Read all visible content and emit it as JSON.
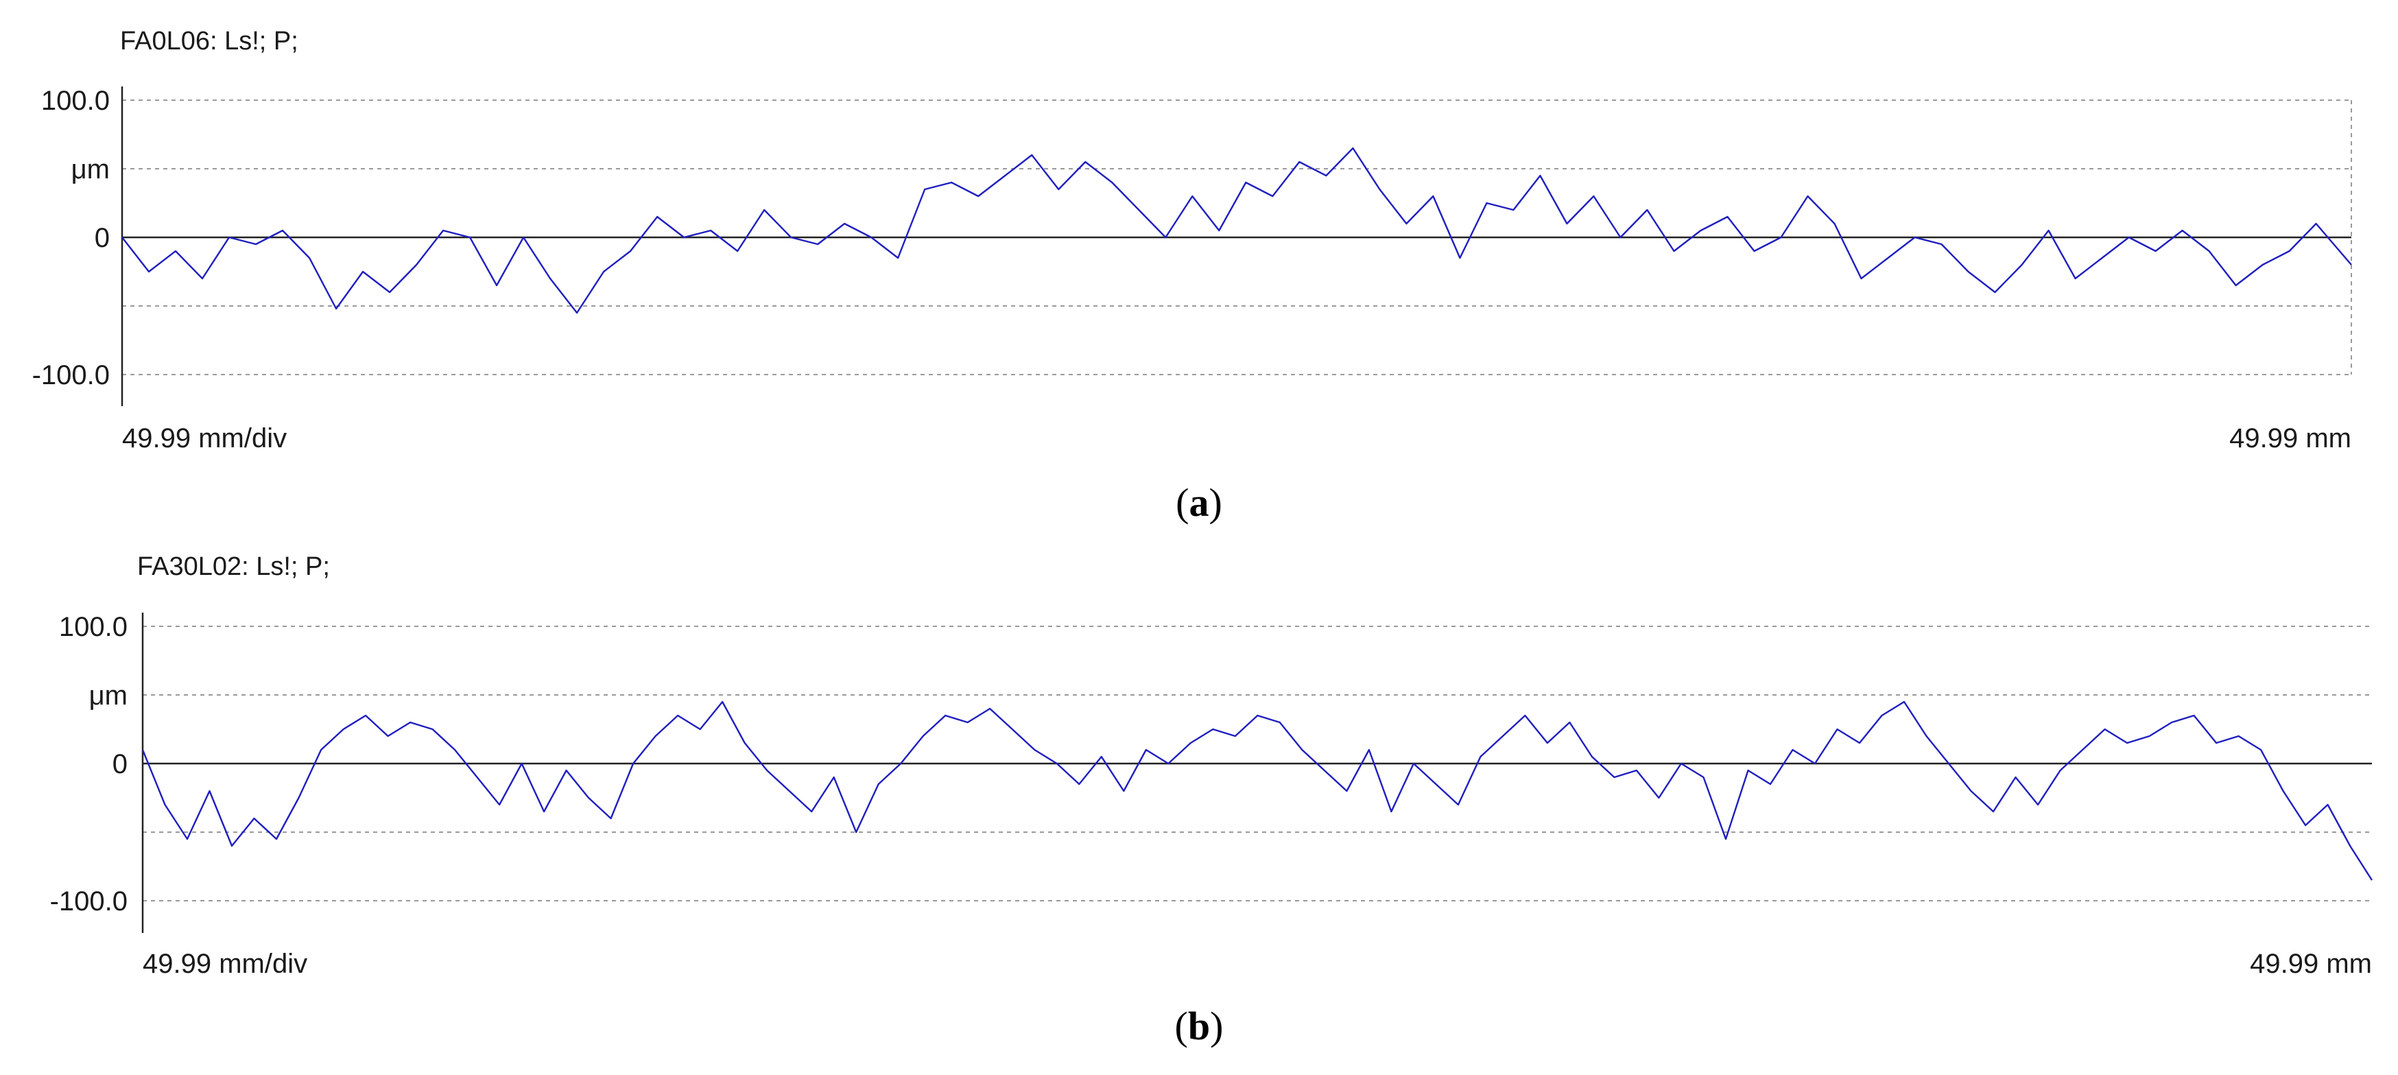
{
  "figure": {
    "captions": [
      "(a)",
      "(b)"
    ]
  },
  "chart_data": [
    {
      "type": "line",
      "title": "FA0L06: Ls!; P;",
      "y_ticks": [
        "100.0",
        "μm",
        "0",
        "-100.0"
      ],
      "y_tick_values": [
        100,
        50,
        0,
        -100
      ],
      "ylim": [
        -100,
        100
      ],
      "xlim": [
        0,
        49.99
      ],
      "x_left_label": "49.99 mm/div",
      "x_right_label": "49.99 mm",
      "grid": "horizontal dashed",
      "line_color": "#1f1fbf",
      "series": [
        {
          "x": [
            0.0,
            0.6,
            1.2,
            1.8,
            2.4,
            3.0,
            3.6,
            4.2,
            4.8,
            5.4,
            6.0,
            6.6,
            7.2,
            7.8,
            8.4,
            9.0,
            9.6,
            10.2,
            10.8,
            11.4,
            12.0,
            12.6,
            13.2,
            13.8,
            14.4,
            15.0,
            15.6,
            16.2,
            16.8,
            17.4,
            18.0,
            18.6,
            19.2,
            19.8,
            20.4,
            21.0,
            21.6,
            22.2,
            22.8,
            23.4,
            24.0,
            24.6,
            25.2,
            25.8,
            26.4,
            27.0,
            27.6,
            28.2,
            28.8,
            29.4,
            30.0,
            30.6,
            31.2,
            31.8,
            32.4,
            33.0,
            33.6,
            34.2,
            34.8,
            35.4,
            36.0,
            36.6,
            37.2,
            37.8,
            38.4,
            39.0,
            39.6,
            40.2,
            40.8,
            41.4,
            42.0,
            42.6,
            43.2,
            43.8,
            44.4,
            45.0,
            45.6,
            46.2,
            46.8,
            47.4,
            48.0,
            48.6,
            49.2,
            49.99
          ],
          "y": [
            0,
            -25,
            -10,
            -30,
            0,
            -5,
            5,
            -15,
            -52,
            -25,
            -40,
            -20,
            5,
            0,
            -35,
            0,
            -30,
            -55,
            -25,
            -10,
            15,
            0,
            5,
            -10,
            20,
            0,
            -5,
            10,
            0,
            -15,
            35,
            40,
            30,
            45,
            60,
            35,
            55,
            40,
            20,
            0,
            30,
            5,
            40,
            30,
            55,
            45,
            65,
            35,
            10,
            30,
            -15,
            25,
            20,
            45,
            10,
            30,
            0,
            20,
            -10,
            5,
            15,
            -10,
            0,
            30,
            10,
            -30,
            -15,
            0,
            -5,
            -25,
            -40,
            -20,
            5,
            -30,
            -15,
            0,
            -10,
            5,
            -10,
            -35,
            -20,
            -10,
            10,
            -20
          ]
        }
      ]
    },
    {
      "type": "line",
      "title": "FA30L02: Ls!; P;",
      "y_ticks": [
        "100.0",
        "μm",
        "0",
        "-100.0"
      ],
      "y_tick_values": [
        100,
        50,
        0,
        -100
      ],
      "ylim": [
        -100,
        100
      ],
      "xlim": [
        0,
        49.99
      ],
      "x_left_label": "49.99 mm/div",
      "x_right_label": "49.99 mm",
      "grid": "horizontal dashed",
      "line_color": "#1f1fbf",
      "series": [
        {
          "x": [
            0.0,
            0.5,
            1.0,
            1.5,
            2.0,
            2.5,
            3.0,
            3.5,
            4.0,
            4.5,
            5.0,
            5.5,
            6.0,
            6.5,
            7.0,
            7.5,
            8.0,
            8.5,
            9.0,
            9.5,
            10.0,
            10.5,
            11.0,
            11.5,
            12.0,
            12.5,
            13.0,
            13.5,
            14.0,
            14.5,
            15.0,
            15.5,
            16.0,
            16.5,
            17.0,
            17.5,
            18.0,
            18.5,
            19.0,
            19.5,
            20.0,
            20.5,
            21.0,
            21.5,
            22.0,
            22.5,
            23.0,
            23.5,
            24.0,
            24.5,
            25.0,
            25.5,
            26.0,
            26.5,
            27.0,
            27.5,
            28.0,
            28.5,
            29.0,
            29.5,
            30.0,
            30.5,
            31.0,
            31.5,
            32.0,
            32.5,
            33.0,
            33.5,
            34.0,
            34.5,
            35.0,
            35.5,
            36.0,
            36.5,
            37.0,
            37.5,
            38.0,
            38.5,
            39.0,
            39.5,
            40.0,
            40.5,
            41.0,
            41.5,
            42.0,
            42.5,
            43.0,
            43.5,
            44.0,
            44.5,
            45.0,
            45.5,
            46.0,
            46.5,
            47.0,
            47.5,
            48.0,
            48.5,
            49.0,
            49.5,
            49.99
          ],
          "y": [
            10,
            -30,
            -55,
            -20,
            -60,
            -40,
            -55,
            -25,
            10,
            25,
            35,
            20,
            30,
            25,
            10,
            -10,
            -30,
            0,
            -35,
            -5,
            -25,
            -40,
            0,
            20,
            35,
            25,
            45,
            15,
            -5,
            -20,
            -35,
            -10,
            -50,
            -15,
            0,
            20,
            35,
            30,
            40,
            25,
            10,
            0,
            -15,
            5,
            -20,
            10,
            0,
            15,
            25,
            20,
            35,
            30,
            10,
            -5,
            -20,
            10,
            -35,
            0,
            -15,
            -30,
            5,
            20,
            35,
            15,
            30,
            5,
            -10,
            -5,
            -25,
            0,
            -10,
            -55,
            -5,
            -15,
            10,
            0,
            25,
            15,
            35,
            45,
            20,
            0,
            -20,
            -35,
            -10,
            -30,
            -5,
            10,
            25,
            15,
            20,
            30,
            35,
            15,
            20,
            10,
            -20,
            -45,
            -30,
            -60,
            -85
          ]
        }
      ]
    }
  ]
}
